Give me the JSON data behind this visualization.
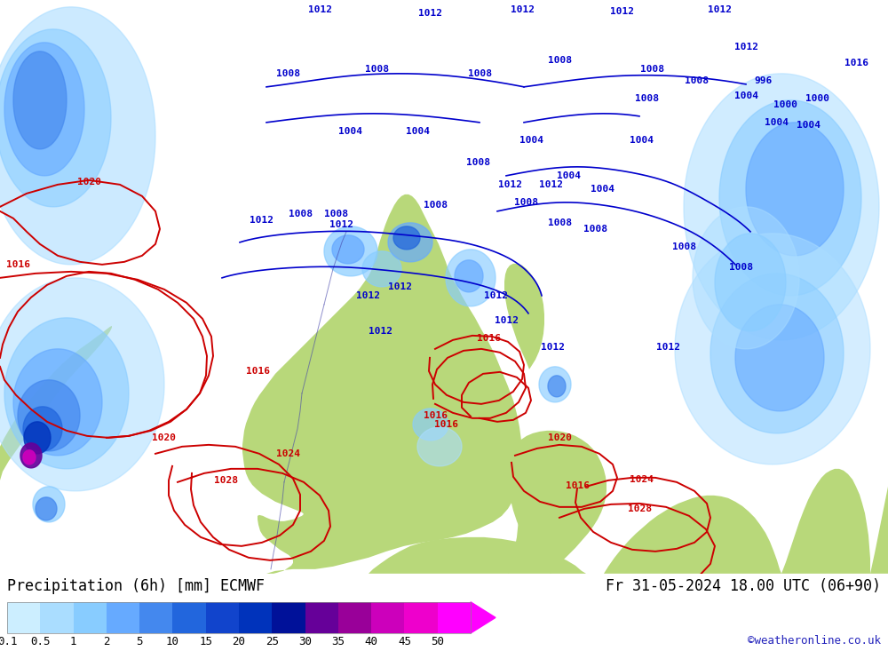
{
  "title_left": "Precipitation (6h) [mm] ECMWF",
  "title_right": "Fr 31-05-2024 18.00 UTC (06+90)",
  "credit": "©weatheronline.co.uk",
  "colorbar_levels": [
    "0.1",
    "0.5",
    "1",
    "2",
    "5",
    "10",
    "15",
    "20",
    "25",
    "30",
    "35",
    "40",
    "45",
    "50"
  ],
  "colorbar_colors": [
    "#cceeff",
    "#aaddff",
    "#88ccff",
    "#66aaff",
    "#4488ee",
    "#2266dd",
    "#1144cc",
    "#0033bb",
    "#001199",
    "#660099",
    "#990099",
    "#cc00bb",
    "#ee00cc",
    "#ff00ff"
  ],
  "bg_land": "#b8d87a",
  "bg_ocean": "#c8dce8",
  "bg_legend": "#ffffff",
  "isobar_blue": "#0000cc",
  "isobar_red": "#cc0000",
  "border_color": "#4444aa",
  "title_fontsize": 12,
  "credit_fontsize": 9,
  "tick_fontsize": 9,
  "isobar_fontsize": 8
}
